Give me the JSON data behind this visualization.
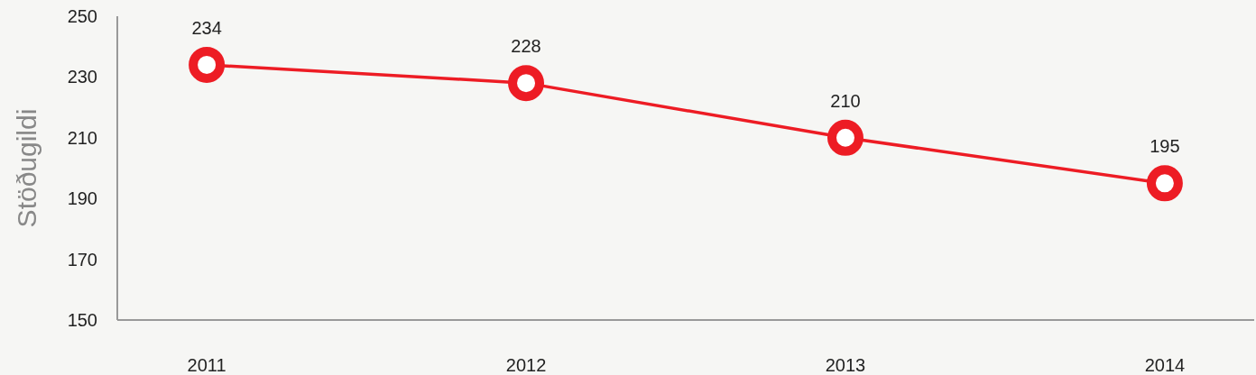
{
  "chart_data": {
    "type": "line",
    "ylabel": "Stöðugildi",
    "categories": [
      "2011",
      "2012",
      "2013",
      "2014"
    ],
    "series": [
      {
        "color": "#ed1c24",
        "values": [
          234,
          228,
          210,
          195
        ]
      }
    ],
    "ylim": [
      150,
      250
    ],
    "yticks": [
      150,
      170,
      190,
      210,
      230,
      250
    ],
    "data_labels": true,
    "marker": "circle",
    "line_style": "solid",
    "grid": false
  }
}
